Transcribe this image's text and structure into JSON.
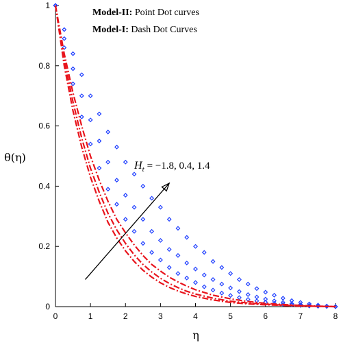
{
  "chart_data": {
    "type": "line",
    "title": "",
    "xlabel": "η",
    "ylabel": "θ(η)",
    "xlim": [
      0,
      8
    ],
    "ylim": [
      0,
      1
    ],
    "xticks": [
      0,
      1,
      2,
      3,
      4,
      5,
      6,
      7,
      8
    ],
    "yticks": [
      0,
      0.2,
      0.4,
      0.6,
      0.8,
      1
    ],
    "ytick_labels": [
      "0",
      "0.2",
      "0.4",
      "0.6",
      "0.8",
      "1"
    ],
    "grid": false,
    "legend": {
      "line1_bold": "Model-II:",
      "line1_text": " Point Dot curves",
      "line2_bold": "Model-I:",
      "line2_text": " Dash Dot Curves"
    },
    "annotation": {
      "var": "H",
      "sub": "t",
      "text": "= −1.8, 0.4, 1.4",
      "arrow_from": [
        0.85,
        0.09
      ],
      "arrow_to": [
        3.25,
        0.41
      ]
    },
    "series": [
      {
        "model": "Model-II",
        "style": "points",
        "color": "#1f3fff",
        "x": [
          0,
          0.25,
          0.5,
          0.75,
          1.0,
          1.25,
          1.5,
          1.75,
          2.0,
          2.25,
          2.5,
          2.75,
          3.0,
          3.25,
          3.5,
          3.75,
          4.0,
          4.25,
          4.5,
          4.75,
          5.0,
          5.25,
          5.5,
          5.75,
          6.0,
          6.25,
          6.5,
          6.75,
          7.0,
          7.25,
          7.5,
          7.75,
          8.0
        ],
        "y": [
          1,
          0.92,
          0.84,
          0.77,
          0.7,
          0.64,
          0.58,
          0.53,
          0.48,
          0.44,
          0.4,
          0.36,
          0.33,
          0.29,
          0.26,
          0.23,
          0.2,
          0.18,
          0.15,
          0.13,
          0.11,
          0.09,
          0.075,
          0.06,
          0.048,
          0.038,
          0.028,
          0.02,
          0.014,
          0.009,
          0.005,
          0.002,
          0
        ]
      },
      {
        "model": "Model-II",
        "style": "points",
        "color": "#1f3fff",
        "x": [
          0,
          0.25,
          0.5,
          0.75,
          1.0,
          1.25,
          1.5,
          1.75,
          2.0,
          2.25,
          2.5,
          2.75,
          3.0,
          3.25,
          3.5,
          3.75,
          4.0,
          4.25,
          4.5,
          4.75,
          5.0,
          5.25,
          5.5,
          5.75,
          6.0,
          6.25,
          6.5,
          6.75,
          7.0,
          7.25,
          7.5,
          7.75,
          8.0
        ],
        "y": [
          1,
          0.89,
          0.79,
          0.7,
          0.62,
          0.55,
          0.48,
          0.42,
          0.37,
          0.33,
          0.29,
          0.25,
          0.22,
          0.19,
          0.17,
          0.145,
          0.125,
          0.105,
          0.09,
          0.075,
          0.062,
          0.05,
          0.04,
          0.032,
          0.025,
          0.019,
          0.014,
          0.01,
          0.007,
          0.004,
          0.002,
          0.001,
          0
        ]
      },
      {
        "model": "Model-II",
        "style": "points",
        "color": "#1f3fff",
        "x": [
          0,
          0.25,
          0.5,
          0.75,
          1.0,
          1.25,
          1.5,
          1.75,
          2.0,
          2.25,
          2.5,
          2.75,
          3.0,
          3.25,
          3.5,
          3.75,
          4.0,
          4.25,
          4.5,
          4.75,
          5.0,
          5.25,
          5.5,
          5.75,
          6.0,
          6.25,
          6.5,
          6.75,
          7.0,
          7.25,
          7.5,
          7.75,
          8.0
        ],
        "y": [
          1,
          0.86,
          0.74,
          0.63,
          0.54,
          0.46,
          0.39,
          0.34,
          0.29,
          0.25,
          0.21,
          0.18,
          0.155,
          0.13,
          0.11,
          0.095,
          0.08,
          0.066,
          0.055,
          0.045,
          0.037,
          0.03,
          0.024,
          0.019,
          0.015,
          0.011,
          0.008,
          0.006,
          0.004,
          0.002,
          0.001,
          0.0005,
          0
        ]
      },
      {
        "model": "Model-I",
        "style": "dash-dot",
        "color": "#e8141c",
        "x": [
          0,
          0.25,
          0.5,
          0.75,
          1.0,
          1.25,
          1.5,
          1.75,
          2.0,
          2.25,
          2.5,
          2.75,
          3.0,
          3.25,
          3.5,
          3.75,
          4.0,
          4.5,
          5.0,
          5.5,
          6.0,
          6.5,
          7.0,
          7.5,
          8.0
        ],
        "y": [
          1,
          0.84,
          0.71,
          0.6,
          0.5,
          0.42,
          0.35,
          0.29,
          0.245,
          0.205,
          0.17,
          0.14,
          0.118,
          0.098,
          0.082,
          0.068,
          0.056,
          0.038,
          0.026,
          0.017,
          0.011,
          0.007,
          0.004,
          0.0015,
          0
        ]
      },
      {
        "model": "Model-I",
        "style": "dash-dot",
        "color": "#e8141c",
        "x": [
          0,
          0.25,
          0.5,
          0.75,
          1.0,
          1.25,
          1.5,
          1.75,
          2.0,
          2.25,
          2.5,
          2.75,
          3.0,
          3.25,
          3.5,
          3.75,
          4.0,
          4.5,
          5.0,
          5.5,
          6.0,
          6.5,
          7.0,
          7.5,
          8.0
        ],
        "y": [
          1,
          0.82,
          0.68,
          0.56,
          0.46,
          0.38,
          0.31,
          0.255,
          0.21,
          0.172,
          0.14,
          0.115,
          0.094,
          0.077,
          0.063,
          0.051,
          0.042,
          0.028,
          0.018,
          0.012,
          0.008,
          0.005,
          0.003,
          0.001,
          0
        ]
      },
      {
        "model": "Model-I",
        "style": "dash-dot",
        "color": "#e8141c",
        "x": [
          0,
          0.25,
          0.5,
          0.75,
          1.0,
          1.25,
          1.5,
          1.75,
          2.0,
          2.25,
          2.5,
          2.75,
          3.0,
          3.25,
          3.5,
          3.75,
          4.0,
          4.5,
          5.0,
          5.5,
          6.0,
          6.5,
          7.0,
          7.5,
          8.0
        ],
        "y": [
          1,
          0.8,
          0.65,
          0.53,
          0.43,
          0.35,
          0.28,
          0.228,
          0.185,
          0.15,
          0.121,
          0.098,
          0.079,
          0.064,
          0.052,
          0.042,
          0.034,
          0.022,
          0.014,
          0.009,
          0.006,
          0.004,
          0.002,
          0.001,
          0
        ]
      }
    ]
  }
}
